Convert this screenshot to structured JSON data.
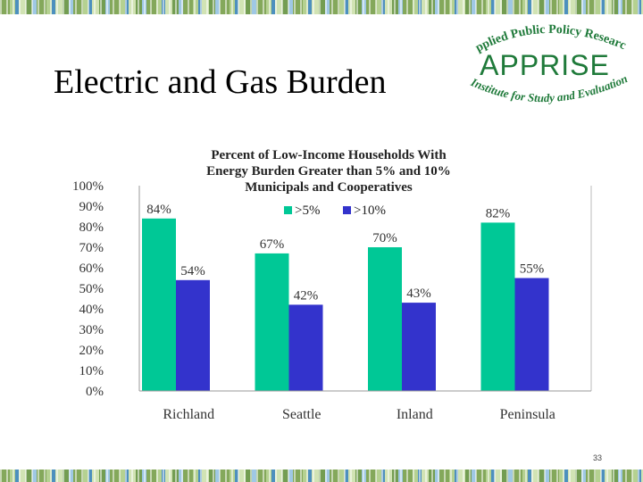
{
  "slide": {
    "title": "Electric and Gas Burden",
    "page_number": "33"
  },
  "logo": {
    "top_text": "Applied Public Policy Research",
    "main_text": "APPRISE",
    "bottom_text": "Institute for Study and Evaluation",
    "color": "#1f7a3a"
  },
  "chart_data": {
    "type": "bar",
    "title": [
      "Percent of Low-Income Households With",
      "Energy Burden Greater than 5% and 10%",
      "Municipals and Cooperatives"
    ],
    "categories": [
      "Richland",
      "Seattle",
      "Inland",
      "Peninsula"
    ],
    "series": [
      {
        "name": ">5%",
        "values": [
          84,
          67,
          70,
          82
        ],
        "labels": [
          "84%",
          "67%",
          "70%",
          "82%"
        ],
        "color": "#00c896"
      },
      {
        "name": ">10%",
        "values": [
          54,
          42,
          43,
          55
        ],
        "labels": [
          "54%",
          "42%",
          "43%",
          "55%"
        ],
        "color": "#3333cc"
      }
    ],
    "ylim": [
      0,
      100
    ],
    "yticks": [
      "0%",
      "10%",
      "20%",
      "30%",
      "40%",
      "50%",
      "60%",
      "70%",
      "80%",
      "90%",
      "100%"
    ],
    "grid": false,
    "legend": "top"
  }
}
